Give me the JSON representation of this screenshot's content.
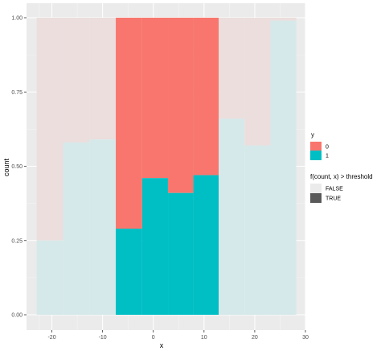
{
  "chart_data": {
    "type": "bar",
    "variant": "stacked-fill histogram",
    "title": "",
    "xlabel": "x",
    "ylabel": "count",
    "xlim": [
      -25,
      30
    ],
    "ylim": [
      0,
      1
    ],
    "x_ticks": [
      -20,
      -10,
      0,
      10,
      20,
      30
    ],
    "x_tick_labels": [
      "-20",
      "-10",
      "0",
      "10",
      "20",
      "30"
    ],
    "y_ticks": [
      0,
      0.25,
      0.5,
      0.75,
      1
    ],
    "y_tick_labels": [
      "0.00",
      "0.25",
      "0.50",
      "0.75",
      "1.00"
    ],
    "grid": true,
    "bins": [
      {
        "x0": -23.0,
        "x1": -17.8,
        "y1": 0.25,
        "highlight": false
      },
      {
        "x0": -17.8,
        "x1": -12.6,
        "y1": 0.58,
        "highlight": false
      },
      {
        "x0": -12.6,
        "x1": -7.4,
        "y1": 0.59,
        "highlight": false
      },
      {
        "x0": -7.4,
        "x1": -2.2,
        "y1": 0.29,
        "highlight": true
      },
      {
        "x0": -2.2,
        "x1": 2.9,
        "y1": 0.46,
        "highlight": true
      },
      {
        "x0": 2.9,
        "x1": 7.9,
        "y1": 0.41,
        "highlight": true
      },
      {
        "x0": 7.9,
        "x1": 12.9,
        "y1": 0.47,
        "highlight": true
      },
      {
        "x0": 12.9,
        "x1": 18.0,
        "y1": 0.66,
        "highlight": false
      },
      {
        "x0": 18.0,
        "x1": 23.1,
        "y1": 0.57,
        "highlight": false
      },
      {
        "x0": 23.1,
        "x1": 28.2,
        "y1": 0.99,
        "highlight": false
      }
    ],
    "fill_legend": {
      "title": "y",
      "entries": [
        {
          "label": "0",
          "color": "#f8766d"
        },
        {
          "label": "1",
          "color": "#00bfc4"
        }
      ]
    },
    "alpha_legend": {
      "title": "f(count, x) > threshold",
      "entries": [
        {
          "label": "FALSE",
          "color": "#ebebeb"
        },
        {
          "label": "TRUE",
          "color": "#595959"
        }
      ]
    },
    "legend_position": "right",
    "colors": {
      "panel_background": "#ebebeb",
      "grid_major": "#ffffff",
      "grid_minor": "#f5f5f5",
      "y0_full": "#f8766d",
      "y1_full": "#00bfc4",
      "y0_faded": "#ebdedd",
      "y1_faded": "#d6e9ea"
    }
  }
}
